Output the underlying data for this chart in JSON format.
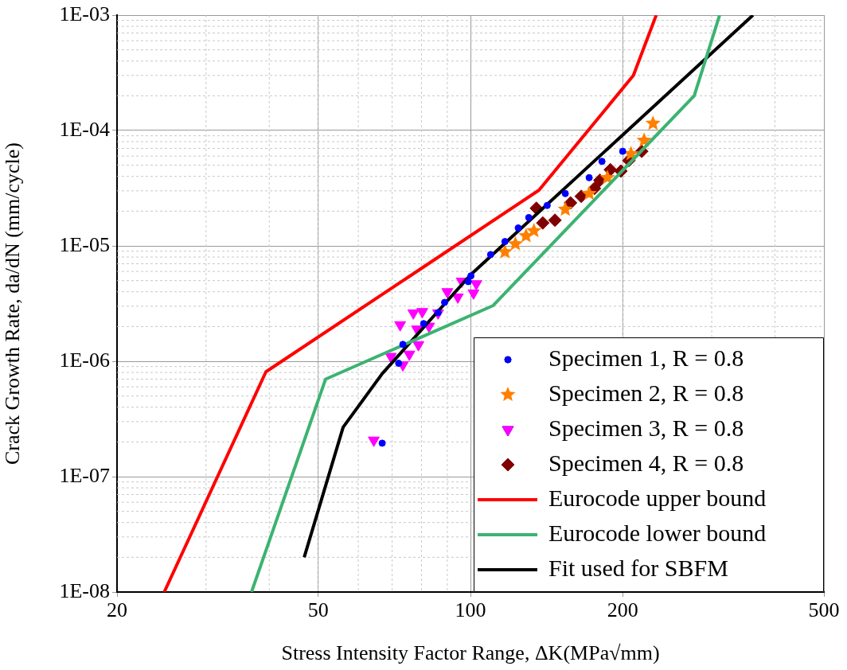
{
  "chart_data": {
    "type": "scatter",
    "xlabel": "Stress Intensity Factor Range, ΔK(MPa√mm)",
    "ylabel": "Crack Growth Rate, da/dN (mm/cycle)",
    "log": "xy",
    "grid": true,
    "legend": "bottom right",
    "xlim": [
      20,
      500
    ],
    "xticks": [
      20,
      50,
      100,
      200,
      500
    ],
    "ylim": [
      1e-08,
      0.001
    ],
    "yticks": [
      {
        "value": 1e-08,
        "label": "1E-08"
      },
      {
        "value": 1e-07,
        "label": "1E-07"
      },
      {
        "value": 1e-06,
        "label": "1E-06"
      },
      {
        "value": 1e-05,
        "label": "1E-05"
      },
      {
        "value": 0.0001,
        "label": "1E-04"
      },
      {
        "value": 0.001,
        "label": "1E-03"
      }
    ],
    "series": [
      {
        "name": "Specimen 1, R = 0.8",
        "type": "scatter",
        "marker": "circle",
        "color": "#0000ff",
        "x": [
          66.9,
          72.1,
          73.5,
          80.8,
          86.3,
          88.9,
          99,
          100.2,
          109.6,
          117,
          124.3,
          130.4,
          141.8,
          154,
          171.7,
          182,
          200
        ],
        "values": [
          1.95e-07,
          9.6e-07,
          1.4e-06,
          2.12e-06,
          2.64e-06,
          3.24e-06,
          4.9e-06,
          5.5e-06,
          8.4e-06,
          1.09e-05,
          1.43e-05,
          1.76e-05,
          2.24e-05,
          2.84e-05,
          3.9e-05,
          5.4e-05,
          6.6e-05
        ]
      },
      {
        "name": "Specimen 2, R = 0.8",
        "type": "scatter",
        "marker": "star",
        "color": "#ff8000",
        "x": [
          117,
          122.7,
          128.8,
          133.5,
          154,
          171.7,
          186.6,
          207.7,
          220.5,
          229.6
        ],
        "values": [
          8.85e-06,
          1.04e-05,
          1.22e-05,
          1.35e-05,
          2.07e-05,
          2.84e-05,
          3.9e-05,
          6.28e-05,
          8.2e-05,
          0.000115
        ]
      },
      {
        "name": "Specimen 3, R = 0.8",
        "type": "scatter",
        "marker": "triangle",
        "color": "#ff00ff",
        "x": [
          64.4,
          69.6,
          72.6,
          73.5,
          75.7,
          77.1,
          78.4,
          78.9,
          80.3,
          82.8,
          86.3,
          90,
          94.4,
          96.1,
          101.4,
          102.7
        ],
        "values": [
          2.07e-07,
          1.1e-06,
          2.07e-06,
          9.3e-07,
          1.15e-06,
          2.62e-06,
          1.9e-06,
          1.39e-06,
          2.69e-06,
          2.01e-06,
          2.62e-06,
          4e-06,
          3.6e-06,
          4.94e-06,
          3.9e-06,
          4.69e-06
        ]
      },
      {
        "name": "Specimen 4, R = 0.8",
        "type": "scatter",
        "marker": "diamond",
        "color": "#800000",
        "x": [
          135,
          139,
          146.9,
          157.7,
          165.6,
          175.9,
          180.3,
          189.1,
          198.4,
          205.7,
          218.1
        ],
        "values": [
          2.12e-05,
          1.58e-05,
          1.67e-05,
          2.36e-05,
          2.69e-05,
          3.15e-05,
          3.7e-05,
          4.57e-05,
          4.45e-05,
          5.5e-05,
          6.6e-05
        ]
      },
      {
        "name": "Eurocode upper bound",
        "type": "line",
        "marker": "none",
        "color": "#ff0000",
        "x": [
          24.8,
          39.4,
          136.6,
          210,
          233
        ],
        "values": [
          1e-08,
          8.1e-07,
          3.04e-05,
          0.0003,
          0.001
        ]
      },
      {
        "name": "Eurocode lower bound",
        "type": "line",
        "marker": "none",
        "color": "#3cb371",
        "x": [
          36.9,
          51.7,
          110.9,
          277,
          311
        ],
        "values": [
          1e-08,
          7e-07,
          3.04e-06,
          0.0002,
          0.001
        ]
      },
      {
        "name": "Fit used for SBFM",
        "type": "line",
        "marker": "none",
        "color": "#000000",
        "x": [
          46.9,
          56,
          66.9,
          100,
          362
        ],
        "values": [
          2e-08,
          2.68e-07,
          7.8e-07,
          5.6e-06,
          0.001
        ]
      }
    ]
  }
}
